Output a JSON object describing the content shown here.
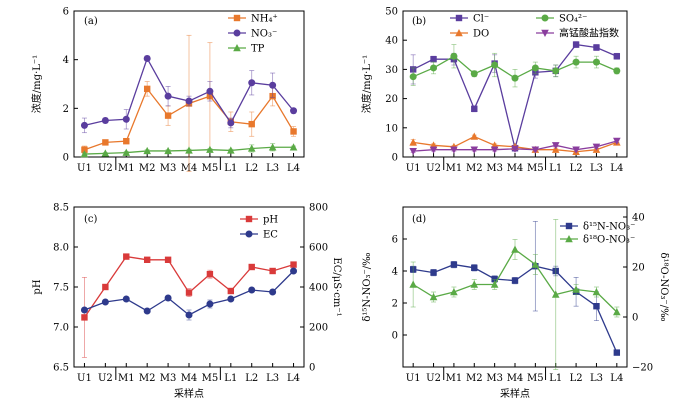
{
  "chart_data": [
    {
      "id": "a",
      "type": "line",
      "panel_label": "(a)",
      "x": [
        "U1",
        "U2",
        "M1",
        "M2",
        "M3",
        "M4",
        "M5",
        "L1",
        "L2",
        "L3",
        "L4"
      ],
      "xlabel": "",
      "ylabel": "浓度/mg·L⁻¹",
      "ylim": [
        0,
        6
      ],
      "yticks": [
        "0",
        "2",
        "4",
        "6"
      ],
      "legend_position": "top-right",
      "series": [
        {
          "name": "NH₄⁺",
          "color": "#e8782c",
          "marker": "square",
          "values": [
            0.3,
            0.6,
            0.65,
            2.8,
            1.7,
            2.2,
            2.5,
            1.45,
            1.35,
            2.5,
            1.05
          ],
          "errors": [
            0.15,
            0.1,
            0.1,
            0.3,
            0.4,
            2.8,
            2.2,
            0.4,
            0.5,
            0.4,
            0.2
          ]
        },
        {
          "name": "NO₃⁻",
          "color": "#5a3d9e",
          "marker": "circle",
          "values": [
            1.3,
            1.5,
            1.55,
            4.05,
            2.5,
            2.3,
            2.7,
            1.4,
            3.05,
            2.95,
            1.9
          ],
          "errors": [
            0.3,
            0.1,
            0.4,
            0.1,
            0.4,
            0.2,
            0.4,
            0.2,
            0.5,
            0.5,
            0.1
          ]
        },
        {
          "name": "TP",
          "color": "#5aaa46",
          "marker": "triangle",
          "values": [
            0.12,
            0.15,
            0.18,
            0.25,
            0.25,
            0.27,
            0.3,
            0.27,
            0.35,
            0.4,
            0.4
          ],
          "errors": [
            0.05,
            0.03,
            0.05,
            0.05,
            0.05,
            0.05,
            0.05,
            0.05,
            0.15,
            0.15,
            0.05
          ]
        }
      ]
    },
    {
      "id": "b",
      "type": "line",
      "panel_label": "(b)",
      "x": [
        "U1",
        "U2",
        "M1",
        "M2",
        "M3",
        "M4",
        "M5",
        "L1",
        "L2",
        "L3",
        "L4"
      ],
      "xlabel": "",
      "ylabel": "浓度/mg·L⁻¹",
      "ylim": [
        0,
        50
      ],
      "yticks": [
        "0",
        "10",
        "20",
        "30",
        "40",
        "50"
      ],
      "legend_position": "top",
      "series": [
        {
          "name": "Cl⁻",
          "color": "#5a3d9e",
          "marker": "square",
          "values": [
            30,
            33.5,
            33.5,
            16.5,
            32,
            3,
            29,
            29.5,
            38.5,
            37.5,
            34.5
          ],
          "errors": [
            5,
            1,
            2,
            1,
            3,
            1,
            2,
            2,
            1,
            1,
            1
          ]
        },
        {
          "name": "SO₄²⁻",
          "color": "#5aaa46",
          "marker": "circle",
          "values": [
            27.5,
            30.5,
            34.5,
            28.5,
            31.5,
            27,
            30.5,
            29.5,
            32.5,
            32.5,
            29.5
          ],
          "errors": [
            3,
            2,
            4,
            1,
            4,
            3,
            2,
            2,
            2,
            2,
            1
          ]
        },
        {
          "name": "DO",
          "color": "#e8782c",
          "marker": "triangle",
          "values": [
            5,
            4,
            3.5,
            7,
            4,
            3.5,
            2.5,
            2.5,
            1.8,
            2.5,
            5
          ],
          "errors": [
            1,
            0.5,
            0.5,
            0.5,
            0.5,
            0.5,
            0.5,
            0.5,
            0.3,
            0.5,
            0.5
          ]
        },
        {
          "name": "高锰酸盐指数",
          "color": "#8a3d9e",
          "marker": "triangle-down",
          "values": [
            2,
            2.5,
            2.5,
            2.5,
            2.5,
            2.8,
            2.5,
            4,
            2.5,
            3.5,
            5.5
          ],
          "errors": [
            0.5,
            0.5,
            0.5,
            0.5,
            0.5,
            0.5,
            0.5,
            0.5,
            0.5,
            0.5,
            0.5
          ]
        }
      ]
    },
    {
      "id": "c",
      "type": "line",
      "panel_label": "(c)",
      "x": [
        "U1",
        "U2",
        "M1",
        "M2",
        "M3",
        "M4",
        "M5",
        "L1",
        "L2",
        "L3",
        "L4"
      ],
      "xlabel": "采样点",
      "ylabel": "pH",
      "ylabel_right": "EC/μS·cm⁻¹",
      "ylim": [
        6.5,
        8.5
      ],
      "yticks": [
        "6.5",
        "7.0",
        "7.5",
        "8.0",
        "8.5"
      ],
      "ylim_right": [
        0,
        800
      ],
      "yticks_right": [
        "0",
        "200",
        "400",
        "600",
        "800"
      ],
      "legend_position": "top-right",
      "series": [
        {
          "name": "pH",
          "axis": "left",
          "color": "#d93a3a",
          "marker": "square",
          "values": [
            7.12,
            7.5,
            7.88,
            7.84,
            7.84,
            7.43,
            7.66,
            7.45,
            7.75,
            7.7,
            7.78
          ],
          "errors": [
            0.5,
            0,
            0,
            0,
            0,
            0.05,
            0.05,
            0,
            0,
            0,
            0
          ]
        },
        {
          "name": "EC",
          "axis": "right",
          "color": "#2e3a8c",
          "marker": "circle",
          "values": [
            285,
            325,
            340,
            280,
            345,
            260,
            315,
            340,
            385,
            375,
            480
          ],
          "errors": [
            0,
            0,
            0,
            0,
            0,
            25,
            20,
            0,
            0,
            0,
            0
          ]
        }
      ]
    },
    {
      "id": "d",
      "type": "line",
      "panel_label": "(d)",
      "x": [
        "U1",
        "U2",
        "M1",
        "M2",
        "M3",
        "M4",
        "M5",
        "L1",
        "L2",
        "L3",
        "L4"
      ],
      "xlabel": "采样点",
      "ylabel": "δ¹⁵N-NO₃⁻/‰",
      "ylabel_right": "δ¹⁸O-NO₃⁻/‰",
      "ylim": [
        -2,
        8
      ],
      "yticks": [
        "0",
        "2",
        "4",
        "6"
      ],
      "ylim_right": [
        -20,
        44
      ],
      "yticks_right": [
        "−20",
        "0",
        "20",
        "40"
      ],
      "legend_position": "top-right",
      "series": [
        {
          "name": "δ¹⁵N-NO₃⁻",
          "axis": "left",
          "color": "#2e3a8c",
          "marker": "square",
          "values": [
            4.1,
            3.9,
            4.4,
            4.2,
            3.5,
            3.4,
            4.3,
            4.0,
            2.7,
            1.8,
            -1.1
          ],
          "errors": [
            0.2,
            0.2,
            0.2,
            0.2,
            0.2,
            0.2,
            2.8,
            0.3,
            0.9,
            0.9,
            0.1
          ]
        },
        {
          "name": "δ¹⁸O-NO₃⁻",
          "axis": "right",
          "color": "#5aaa46",
          "marker": "triangle",
          "values": [
            13,
            8,
            10,
            13,
            13,
            27,
            21,
            9,
            11,
            10,
            2
          ],
          "errors": [
            9,
            2,
            2,
            2,
            2,
            4,
            4,
            30,
            2,
            2,
            2
          ]
        }
      ]
    }
  ]
}
